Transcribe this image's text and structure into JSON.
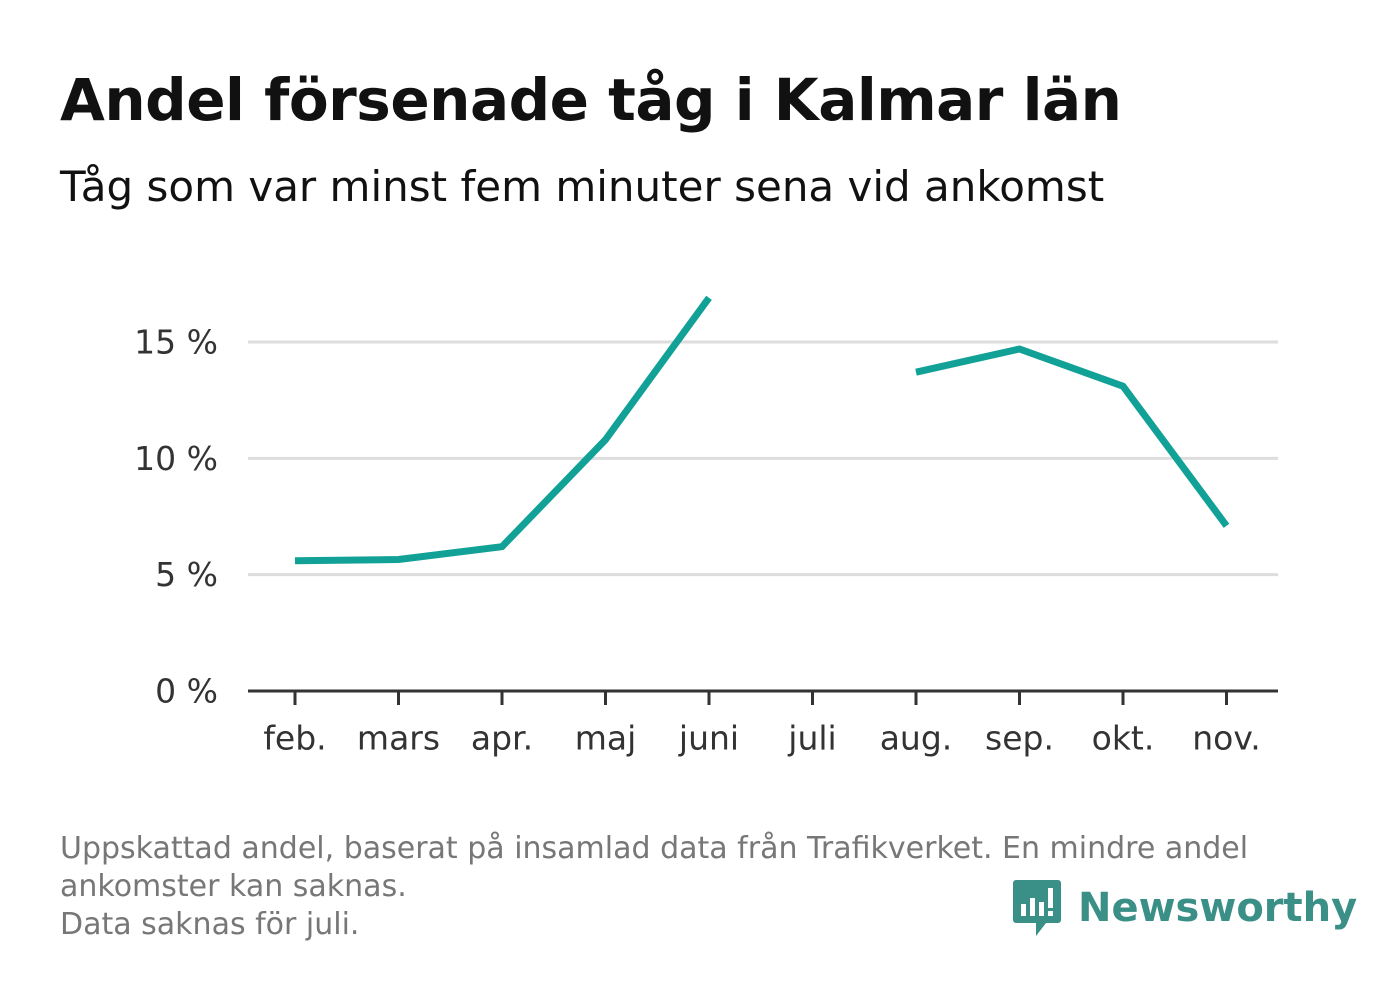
{
  "header": {
    "title": "Andel försenade tåg i Kalmar län",
    "subtitle": "Tåg som var minst fem minuter sena vid ankomst"
  },
  "chart_data": {
    "type": "line",
    "categories": [
      "feb.",
      "mars",
      "apr.",
      "maj",
      "juni",
      "juli",
      "aug.",
      "sep.",
      "okt.",
      "nov."
    ],
    "series": [
      {
        "values": [
          5.6,
          5.65,
          6.2,
          10.8,
          16.9,
          null,
          13.7,
          14.7,
          13.1,
          7.1
        ]
      }
    ],
    "yticks": [
      0,
      5,
      10,
      15
    ],
    "ytick_suffix": " %",
    "ylim": [
      0,
      18
    ],
    "grid": true,
    "legend": "none",
    "colors": {
      "line": "#12a196",
      "grid": "#dddddd",
      "axis": "#333333",
      "tick_text": "#333333"
    }
  },
  "footnote": {
    "lines": [
      "Uppskattad andel, baserat på insamlad data från Trafikverket. En mindre andel",
      "ankomster kan saknas.",
      "Data saknas för juli."
    ]
  },
  "brand": {
    "name": "Newsworthy",
    "icon": "newsworthy-logo-icon",
    "color": "#3a8f86"
  }
}
